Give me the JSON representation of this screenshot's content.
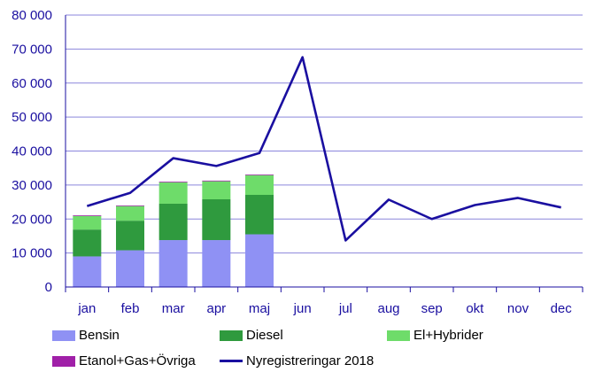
{
  "chart_data": {
    "type": "bar",
    "categories": [
      "jan",
      "feb",
      "mar",
      "apr",
      "maj",
      "jun",
      "jul",
      "aug",
      "sep",
      "okt",
      "nov",
      "dec"
    ],
    "ylim": [
      0,
      80000
    ],
    "yticks": [
      "0",
      "10 000",
      "20 000",
      "30 000",
      "40 000",
      "50 000",
      "60 000",
      "70 000",
      "80 000"
    ],
    "ytick_values": [
      0,
      10000,
      20000,
      30000,
      40000,
      50000,
      60000,
      70000,
      80000
    ],
    "stacked": true,
    "grid": true,
    "legend_position": "bottom",
    "series": [
      {
        "name": "Bensin",
        "kind": "bar",
        "color": "#8f91f4",
        "values": [
          9000,
          10800,
          13800,
          13800,
          15500,
          null,
          null,
          null,
          null,
          null,
          null,
          null
        ]
      },
      {
        "name": "Diesel",
        "kind": "bar",
        "color": "#2f9a3e",
        "values": [
          7900,
          8700,
          10700,
          12000,
          11600,
          null,
          null,
          null,
          null,
          null,
          null,
          null
        ]
      },
      {
        "name": "El+Hybrider",
        "kind": "bar",
        "color": "#6edc6a",
        "values": [
          4000,
          4300,
          6300,
          5300,
          5800,
          null,
          null,
          null,
          null,
          null,
          null,
          null
        ]
      },
      {
        "name": "Etanol+Gas+Övriga",
        "kind": "bar",
        "color": "#a020a8",
        "values": [
          200,
          200,
          200,
          200,
          200,
          null,
          null,
          null,
          null,
          null,
          null,
          null
        ]
      },
      {
        "name": "Nyregistreringar 2018",
        "kind": "line",
        "color": "#1a0fa0",
        "values": [
          23800,
          27700,
          37900,
          35600,
          39400,
          67600,
          13700,
          25700,
          20000,
          24100,
          26200,
          23400
        ]
      }
    ]
  }
}
